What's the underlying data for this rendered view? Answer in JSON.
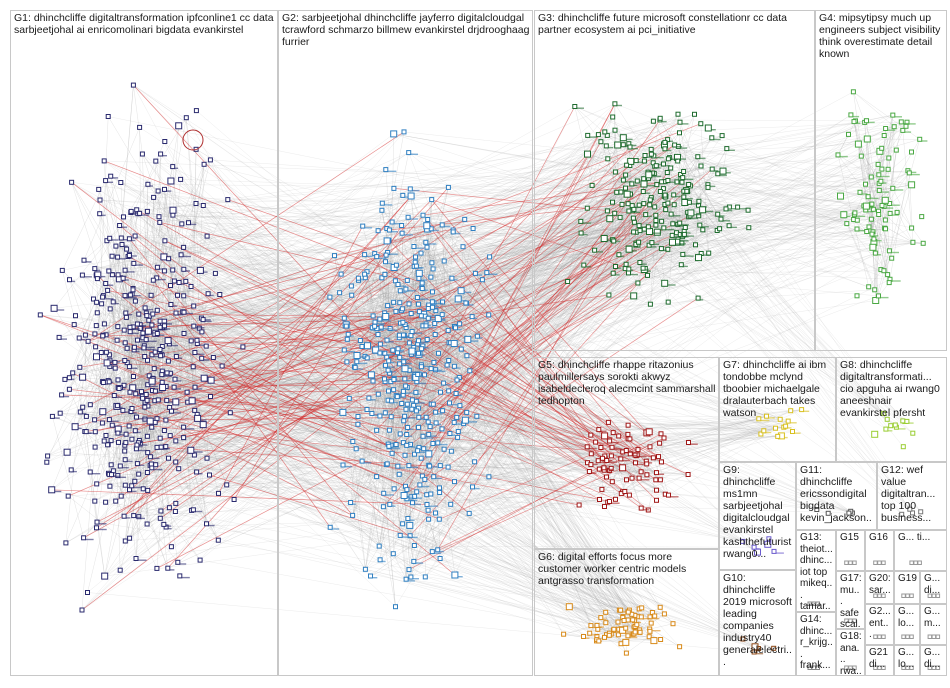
{
  "groups": [
    {
      "id": "G1",
      "label": "G1: dhinchcliffe digitaltransformation ipfconline1 cc data sarbjeetjohal ai enricomolinari bigdata evankirstel",
      "color": "#2a2a6e"
    },
    {
      "id": "G2",
      "label": "G2: sarbjeetjohal dhinchcliffe jayferro digitalcloudgal tcrawford schmarzo billmew evankirstel drjdrooghaag furrier",
      "color": "#2f7fc1"
    },
    {
      "id": "G3",
      "label": "G3: dhinchcliffe future microsoft constellationr cc data partner ecosystem ai pci_initiative",
      "color": "#1e6b2e"
    },
    {
      "id": "G4",
      "label": "G4: mipsytipsy much up engineers subject visibility think overestimate detail known",
      "color": "#4aa843"
    },
    {
      "id": "G5",
      "label": "G5: dhinchcliffe rhappe ritazonius paulmillersays sorokti akwyz isabeldecleroq alecmcint sammarshall tedhopton",
      "color": "#a01818"
    },
    {
      "id": "G6",
      "label": "G6: digital efforts focus more customer worker centric models antgrasso transformation",
      "color": "#d88a1a"
    },
    {
      "id": "G7",
      "label": "G7: dhinchcliffe ai ibm tondobbe mclynd tboobier michaelgale dralauterbach takes watson",
      "color": "#d8c020"
    },
    {
      "id": "G8",
      "label": "G8: dhinchcliffe digitaltransformati... cio apguha ai rwang0 aneeshnair evankirstel pfersht",
      "color": "#9acd32"
    },
    {
      "id": "G9",
      "label": "G9: dhinchcliffe ms1mn sarbjeetjohal digitalcloudgal evankirstel kashthefuturist rwang0...",
      "color": "#6a5acd"
    },
    {
      "id": "G10",
      "label": "G10: dhinchcliffe 2019 microsoft leading companies industry40 generalelectri...",
      "color": "#8b4513"
    },
    {
      "id": "G11",
      "label": "G11: dhinchcliffe ericssondigital bigdata kevin_jackson...",
      "color": "#555555"
    },
    {
      "id": "G12",
      "label": "G12: wef value digitaltran... top 100 business...",
      "color": "#777777"
    },
    {
      "id": "G13",
      "label": "G13: theiot... dhinc... iot top mikeq... tamar...",
      "color": "#888888"
    },
    {
      "id": "G14",
      "label": "G14: dhinc... r_krijg... frank...",
      "color": "#888888"
    },
    {
      "id": "G15",
      "label": "G15",
      "color": "#999999"
    },
    {
      "id": "G16",
      "label": "G16",
      "color": "#999999"
    },
    {
      "id": "G17",
      "label": "G17: mu... safe scal...",
      "color": "#999999"
    },
    {
      "id": "G18",
      "label": "G18: ana... rwa...",
      "color": "#999999"
    },
    {
      "id": "G19",
      "label": "G19",
      "color": "#999999"
    },
    {
      "id": "G20",
      "label": "G20: sar...",
      "color": "#999999"
    },
    {
      "id": "G21",
      "label": "G21 di...",
      "color": "#999999"
    },
    {
      "id": "G22",
      "label": "G2... ent...",
      "color": "#999999"
    },
    {
      "id": "G23",
      "label": "G... lo...",
      "color": "#999999"
    },
    {
      "id": "G24",
      "label": "G... di...",
      "color": "#999999"
    },
    {
      "id": "G25",
      "label": "G... m...",
      "color": "#999999"
    },
    {
      "id": "G26",
      "label": "G... lo...",
      "color": "#999999"
    },
    {
      "id": "G27",
      "label": "G... di...",
      "color": "#999999"
    },
    {
      "id": "G28",
      "label": "G... ti...",
      "color": "#999999"
    }
  ],
  "colors": {
    "edge": "#9a9a9a",
    "edge_red": "#d42a2a",
    "border": "#c8c8c8",
    "hub_ring": "#b03030"
  }
}
